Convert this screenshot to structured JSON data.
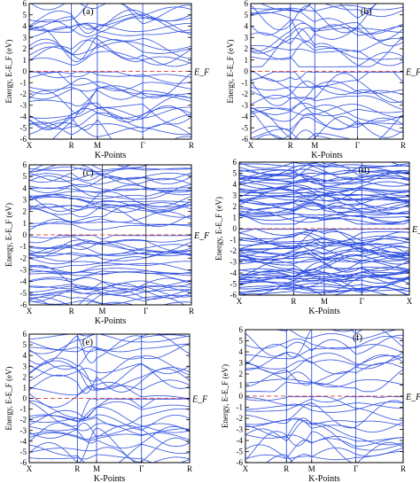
{
  "figure": {
    "common": {
      "ylabel": "Energy, E-E_F (eV)",
      "xlabel": "K-Points",
      "fermi_label": "E_F",
      "y_ticks": [
        6,
        5,
        4,
        3,
        2,
        1,
        0,
        -1,
        -2,
        -3,
        -4,
        -5,
        -6
      ],
      "band_color": "#3050e0",
      "fermi_color": "#e05050",
      "kline_color": "#1a3fd8"
    }
  },
  "chart_data": [
    {
      "type": "line",
      "panel_label": "(a)",
      "ylim": [
        -6,
        6
      ],
      "k_points": [
        "X",
        "R",
        "M",
        "Γ",
        "R"
      ],
      "k_pos": [
        0,
        0.26,
        0.42,
        0.7,
        1.0
      ],
      "fermi_level": 0,
      "grid": false,
      "band_count": 30,
      "band_density": "sparse"
    },
    {
      "type": "line",
      "panel_label": "(b)",
      "ylim": [
        -6,
        6
      ],
      "k_points": [
        "X",
        "R",
        "M",
        "Γ",
        "R"
      ],
      "k_pos": [
        0,
        0.26,
        0.42,
        0.7,
        1.0
      ],
      "fermi_level": 0,
      "grid": false,
      "band_count": 30,
      "band_density": "sparse"
    },
    {
      "type": "line",
      "panel_label": "(c)",
      "ylim": [
        -6,
        6
      ],
      "k_points": [
        "X",
        "R",
        "M",
        "Γ",
        "R"
      ],
      "k_pos": [
        0,
        0.26,
        0.45,
        0.72,
        1.0
      ],
      "fermi_level": 0,
      "grid": false,
      "band_count": 55,
      "band_density": "dense"
    },
    {
      "type": "line",
      "panel_label": "(d)",
      "ylim": [
        -6,
        6
      ],
      "k_points": [
        "X",
        "R",
        "M",
        "Γ",
        "X"
      ],
      "k_pos": [
        0,
        0.32,
        0.5,
        0.72,
        1.0
      ],
      "fermi_level": 0,
      "grid": false,
      "band_count": 80,
      "band_density": "very-dense"
    },
    {
      "type": "line",
      "panel_label": "(e)",
      "ylim": [
        -6,
        6
      ],
      "k_points": [
        "X",
        "R",
        "M",
        "Γ",
        "R"
      ],
      "k_pos": [
        0,
        0.3,
        0.42,
        0.7,
        1.0
      ],
      "fermi_level": 0,
      "grid": false,
      "band_count": 28,
      "band_density": "sparse"
    },
    {
      "type": "line",
      "panel_label": "(f)",
      "ylim": [
        -6,
        6
      ],
      "k_points": [
        "X",
        "R",
        "M",
        "Γ",
        "R"
      ],
      "k_pos": [
        0,
        0.26,
        0.42,
        0.7,
        1.0
      ],
      "fermi_level": 0,
      "grid": false,
      "band_count": 28,
      "band_density": "sparse"
    }
  ]
}
